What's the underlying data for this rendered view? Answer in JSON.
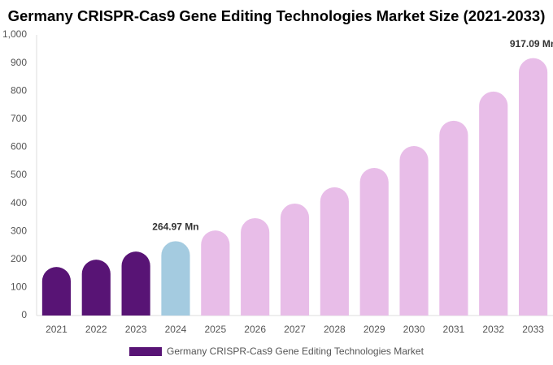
{
  "chart_data": {
    "type": "bar",
    "title": "Germany CRISPR-Cas9 Gene Editing Technologies Market Size (2021-2033)",
    "categories": [
      "2021",
      "2022",
      "2023",
      "2024",
      "2025",
      "2026",
      "2027",
      "2028",
      "2029",
      "2030",
      "2031",
      "2032",
      "2033"
    ],
    "series": [
      {
        "name": "Germany CRISPR-Cas9 Gene Editing Technologies Market",
        "color": "#581475",
        "values": [
          173,
          199,
          228,
          264.97,
          303,
          347,
          399,
          457,
          526,
          604,
          694,
          798,
          917.09
        ],
        "value_labels": [
          null,
          null,
          null,
          "264.97 Mn",
          null,
          null,
          null,
          null,
          null,
          null,
          null,
          null,
          "917.09 Mn"
        ],
        "colors": [
          "#581475",
          "#581475",
          "#581475",
          "#a4cbe0",
          "#e8bde8",
          "#e8bde8",
          "#e8bde8",
          "#e8bde8",
          "#e8bde8",
          "#e8bde8",
          "#e8bde8",
          "#e8bde8",
          "#e8bde8"
        ]
      }
    ],
    "ylim": [
      0,
      1000
    ],
    "yticks": [
      0,
      100,
      200,
      300,
      400,
      500,
      600,
      700,
      800,
      900,
      {
        "value": 1000,
        "label": "1,000"
      }
    ],
    "grid": false
  }
}
